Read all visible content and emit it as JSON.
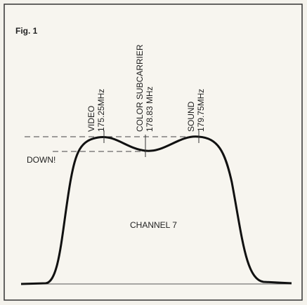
{
  "figure": {
    "label": "Fig. 1",
    "markers": [
      {
        "name": "VIDEO",
        "freq": "175.25MHz"
      },
      {
        "name": "COLOR SUBCARRIER",
        "freq": "178.83 MHz"
      },
      {
        "name": "SOUND",
        "freq": "179.75MHz"
      }
    ],
    "annotation": "DOWN!",
    "channel": "CHANNEL 7"
  }
}
